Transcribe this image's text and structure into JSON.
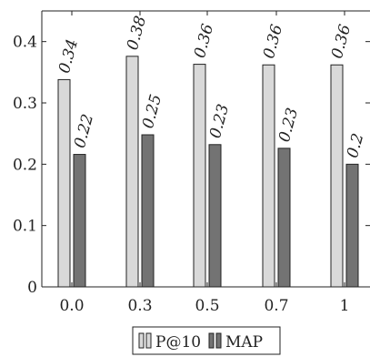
{
  "chart_data": {
    "type": "bar",
    "title": "",
    "xlabel": "",
    "ylabel": "",
    "categories": [
      "0.0",
      "0.3",
      "0.5",
      "0.7",
      "1"
    ],
    "series": [
      {
        "name": "P@10",
        "values": [
          0.338,
          0.376,
          0.363,
          0.362,
          0.362
        ],
        "labels": [
          "0.34",
          "0.38",
          "0.36",
          "0.36",
          "0.36"
        ],
        "color": "#d9d9d9"
      },
      {
        "name": "MAP",
        "values": [
          0.216,
          0.248,
          0.232,
          0.226,
          0.2
        ],
        "labels": [
          "0.22",
          "0.25",
          "0.23",
          "0.23",
          "0.2"
        ],
        "color": "#737373"
      }
    ],
    "ylim": [
      0,
      0.45
    ],
    "yticks": [
      "0",
      "0.1",
      "0.2",
      "0.3",
      "0.4"
    ],
    "grid": false,
    "legend_position": "bottom-center"
  }
}
